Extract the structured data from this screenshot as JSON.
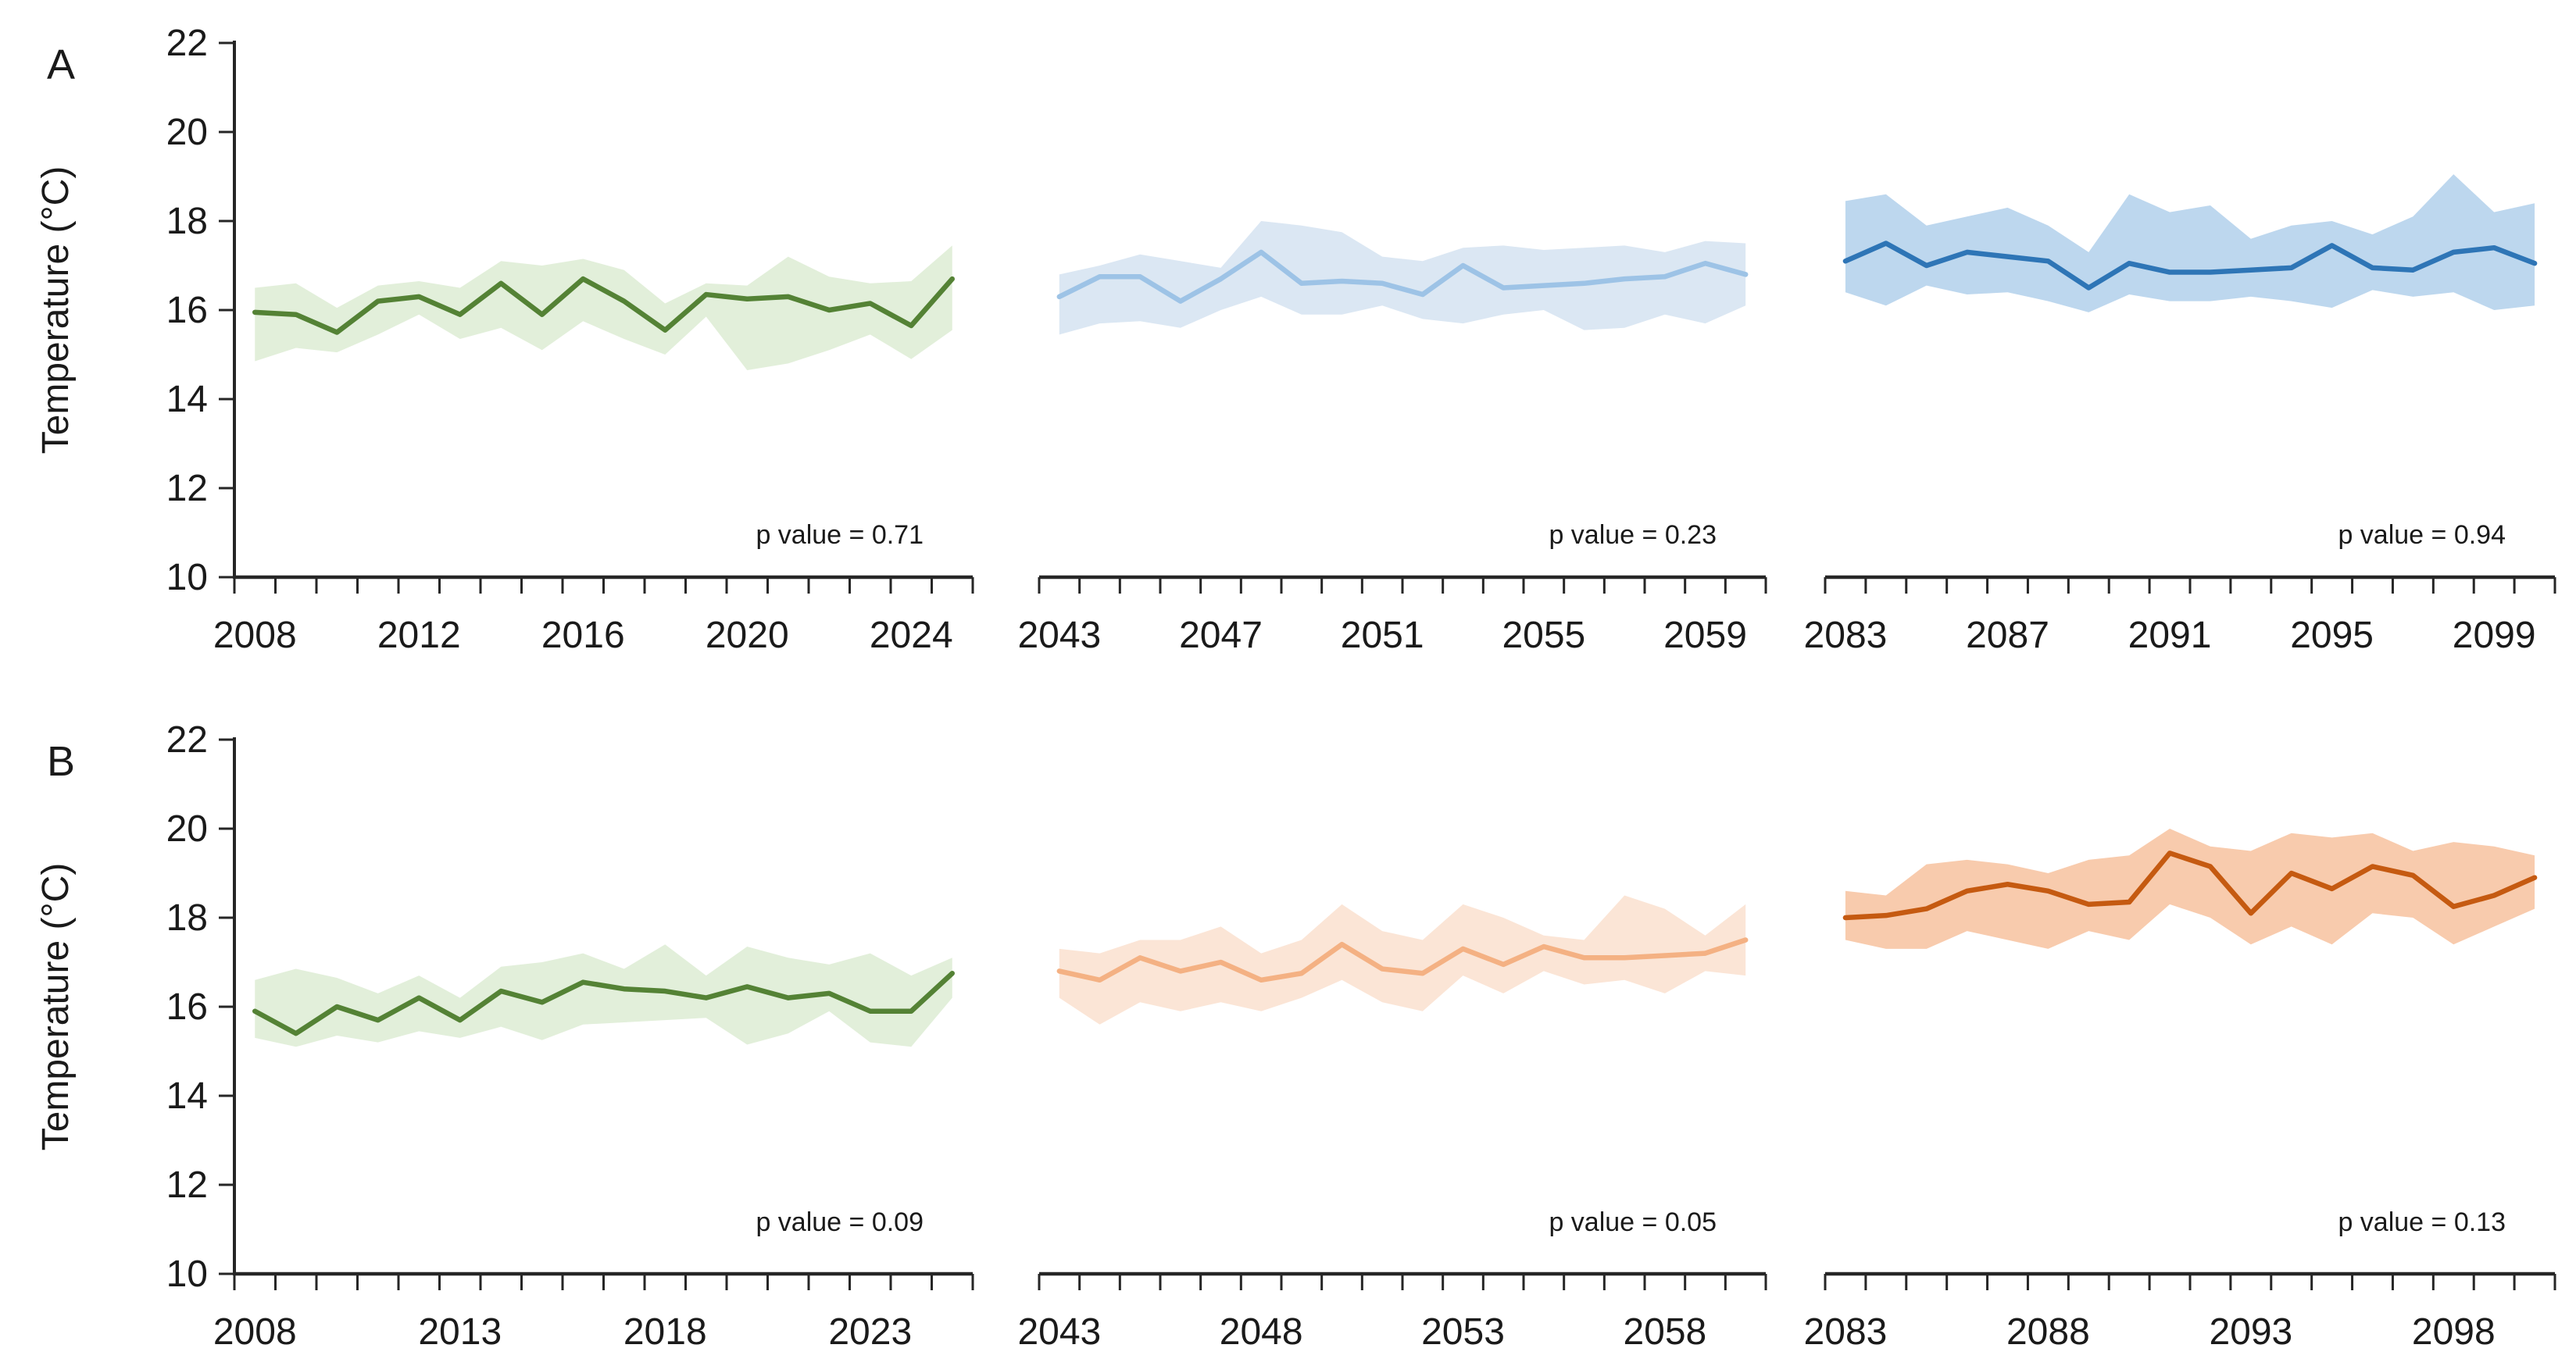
{
  "chart_data": {
    "type": "line",
    "ylabel": "Temperature (°C)",
    "ylim": [
      10,
      22
    ],
    "yticks": [
      10,
      12,
      14,
      16,
      18,
      20,
      22
    ],
    "grid": false,
    "legend": "none",
    "band_style": "shaded confidence envelope around mean line",
    "rows": [
      {
        "label": "A",
        "panels": [
          {
            "p_label": "p value = 0.71",
            "line_color": "#548235",
            "band_color": "#e2efda",
            "xtick_labels": [
              2008,
              2012,
              2016,
              2020,
              2024
            ],
            "years": [
              2008,
              2009,
              2010,
              2011,
              2012,
              2013,
              2014,
              2015,
              2016,
              2017,
              2018,
              2019,
              2020,
              2021,
              2022,
              2023,
              2024,
              2025
            ],
            "mean": [
              15.95,
              15.9,
              15.5,
              16.2,
              16.3,
              15.9,
              16.6,
              15.9,
              16.7,
              16.2,
              15.55,
              16.35,
              16.25,
              16.3,
              16.0,
              16.15,
              15.65,
              16.7
            ],
            "upper": [
              16.5,
              16.6,
              16.05,
              16.55,
              16.65,
              16.5,
              17.1,
              17.0,
              17.15,
              16.9,
              16.15,
              16.6,
              16.55,
              17.2,
              16.75,
              16.6,
              16.65,
              17.45
            ],
            "lower": [
              14.85,
              15.15,
              15.05,
              15.45,
              15.9,
              15.35,
              15.6,
              15.1,
              15.75,
              15.35,
              15.0,
              15.85,
              14.65,
              14.8,
              15.1,
              15.45,
              14.9,
              15.55
            ]
          },
          {
            "p_label": "p value = 0.23",
            "line_color": "#9dc3e6",
            "band_color": "#dbe7f3",
            "xtick_labels": [
              2043,
              2047,
              2051,
              2055,
              2059
            ],
            "years": [
              2043,
              2044,
              2045,
              2046,
              2047,
              2048,
              2049,
              2050,
              2051,
              2052,
              2053,
              2054,
              2055,
              2056,
              2057,
              2058,
              2059,
              2060
            ],
            "mean": [
              16.3,
              16.75,
              16.75,
              16.2,
              16.7,
              17.3,
              16.6,
              16.65,
              16.6,
              16.35,
              17.0,
              16.5,
              16.55,
              16.6,
              16.7,
              16.75,
              17.05,
              16.8
            ],
            "upper": [
              16.8,
              17.0,
              17.25,
              17.1,
              16.95,
              18.0,
              17.9,
              17.75,
              17.2,
              17.1,
              17.4,
              17.45,
              17.35,
              17.4,
              17.45,
              17.3,
              17.55,
              17.5
            ],
            "lower": [
              15.45,
              15.7,
              15.75,
              15.6,
              16.0,
              16.3,
              15.9,
              15.9,
              16.1,
              15.8,
              15.7,
              15.9,
              16.0,
              15.55,
              15.6,
              15.9,
              15.7,
              16.1
            ]
          },
          {
            "p_label": "p value = 0.94",
            "line_color": "#2e75b6",
            "band_color": "#bdd7ee",
            "xtick_labels": [
              2083,
              2087,
              2091,
              2095,
              2099
            ],
            "years": [
              2083,
              2084,
              2085,
              2086,
              2087,
              2088,
              2089,
              2090,
              2091,
              2092,
              2093,
              2094,
              2095,
              2096,
              2097,
              2098,
              2099,
              2100
            ],
            "mean": [
              17.1,
              17.5,
              17.0,
              17.3,
              17.2,
              17.1,
              16.5,
              17.05,
              16.85,
              16.85,
              16.9,
              16.95,
              17.45,
              16.95,
              16.9,
              17.3,
              17.4,
              17.05
            ],
            "upper": [
              18.45,
              18.6,
              17.9,
              18.1,
              18.3,
              17.9,
              17.3,
              18.6,
              18.2,
              18.35,
              17.6,
              17.9,
              18.0,
              17.7,
              18.1,
              19.05,
              18.2,
              18.4
            ],
            "lower": [
              16.4,
              16.1,
              16.55,
              16.35,
              16.4,
              16.2,
              15.95,
              16.35,
              16.2,
              16.2,
              16.3,
              16.2,
              16.05,
              16.45,
              16.3,
              16.4,
              16.0,
              16.1
            ]
          }
        ]
      },
      {
        "label": "B",
        "panels": [
          {
            "p_label": "p value = 0.09",
            "line_color": "#548235",
            "band_color": "#e2efda",
            "xtick_labels": [
              2008,
              2013,
              2018,
              2023
            ],
            "years": [
              2008,
              2009,
              2010,
              2011,
              2012,
              2013,
              2014,
              2015,
              2016,
              2017,
              2018,
              2019,
              2020,
              2021,
              2022,
              2023,
              2024,
              2025
            ],
            "mean": [
              15.9,
              15.4,
              16.0,
              15.7,
              16.2,
              15.7,
              16.35,
              16.1,
              16.55,
              16.4,
              16.35,
              16.2,
              16.45,
              16.2,
              16.3,
              15.9,
              15.9,
              16.75
            ],
            "upper": [
              16.6,
              16.85,
              16.65,
              16.3,
              16.7,
              16.2,
              16.9,
              17.0,
              17.2,
              16.85,
              17.4,
              16.7,
              17.35,
              17.1,
              16.95,
              17.2,
              16.7,
              17.1
            ],
            "lower": [
              15.3,
              15.1,
              15.35,
              15.2,
              15.45,
              15.3,
              15.55,
              15.25,
              15.6,
              15.65,
              15.7,
              15.75,
              15.15,
              15.4,
              15.9,
              15.2,
              15.1,
              16.2
            ]
          },
          {
            "p_label": "p value = 0.05",
            "line_color": "#f4b183",
            "band_color": "#fbe5d6",
            "xtick_labels": [
              2043,
              2048,
              2053,
              2058
            ],
            "years": [
              2043,
              2044,
              2045,
              2046,
              2047,
              2048,
              2049,
              2050,
              2051,
              2052,
              2053,
              2054,
              2055,
              2056,
              2057,
              2058,
              2059,
              2060
            ],
            "mean": [
              16.8,
              16.6,
              17.1,
              16.8,
              17.0,
              16.6,
              16.75,
              17.4,
              16.85,
              16.75,
              17.3,
              16.95,
              17.35,
              17.1,
              17.1,
              17.15,
              17.2,
              17.5
            ],
            "upper": [
              17.3,
              17.2,
              17.5,
              17.5,
              17.8,
              17.2,
              17.5,
              18.3,
              17.7,
              17.5,
              18.3,
              18.0,
              17.6,
              17.5,
              18.5,
              18.2,
              17.6,
              18.3
            ],
            "lower": [
              16.2,
              15.6,
              16.1,
              15.9,
              16.1,
              15.9,
              16.2,
              16.6,
              16.1,
              15.9,
              16.7,
              16.3,
              16.8,
              16.5,
              16.6,
              16.3,
              16.8,
              16.7
            ]
          },
          {
            "p_label": "p value = 0.13",
            "line_color": "#c55a11",
            "band_color": "#f8cbad",
            "xtick_labels": [
              2083,
              2088,
              2093,
              2098
            ],
            "years": [
              2083,
              2084,
              2085,
              2086,
              2087,
              2088,
              2089,
              2090,
              2091,
              2092,
              2093,
              2094,
              2095,
              2096,
              2097,
              2098,
              2099,
              2100
            ],
            "mean": [
              18.0,
              18.05,
              18.2,
              18.6,
              18.75,
              18.6,
              18.3,
              18.35,
              19.45,
              19.15,
              18.1,
              19.0,
              18.65,
              19.15,
              18.95,
              18.25,
              18.5,
              18.9
            ],
            "upper": [
              18.6,
              18.5,
              19.2,
              19.3,
              19.2,
              19.0,
              19.3,
              19.4,
              20.0,
              19.6,
              19.5,
              19.9,
              19.8,
              19.9,
              19.5,
              19.7,
              19.6,
              19.4
            ],
            "lower": [
              17.5,
              17.3,
              17.3,
              17.7,
              17.5,
              17.3,
              17.7,
              17.5,
              18.3,
              18.0,
              17.4,
              17.8,
              17.4,
              18.1,
              18.0,
              17.4,
              17.8,
              18.2
            ]
          }
        ]
      }
    ]
  }
}
